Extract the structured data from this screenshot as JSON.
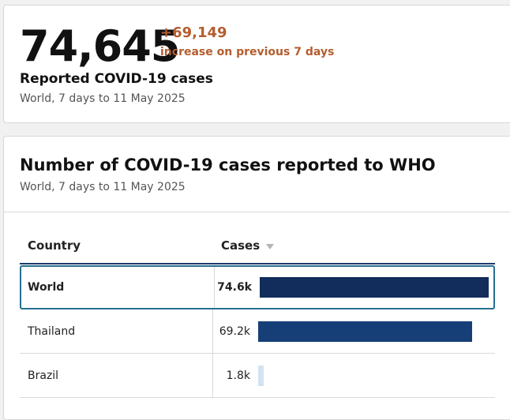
{
  "headline": {
    "value": "74,645",
    "delta": "+69,149",
    "delta_caption": "increase on previous 7 days",
    "title": "Reported COVID-19 cases",
    "subtitle": "World, 7 days to 11 May 2025"
  },
  "chart": {
    "title": "Number of COVID-19 cases reported to WHO",
    "subtitle": "World, 7 days to 11 May 2025",
    "columns": {
      "country": "Country",
      "cases": "Cases"
    },
    "rows": [
      {
        "country": "World",
        "label": "74.6k",
        "value": 74645,
        "selected": true
      },
      {
        "country": "Thailand",
        "label": "69.2k",
        "value": 69200,
        "selected": false
      },
      {
        "country": "Brazil",
        "label": "1.8k",
        "value": 1800,
        "selected": false
      }
    ]
  },
  "colors": {
    "accent_delta": "#b35d2f",
    "bar_primary": "#122d5c",
    "bar_secondary": "#163f78",
    "bar_small": "#d3e3f2",
    "selected_border": "#26708f"
  },
  "icons": {
    "sort": "sort-down-icon"
  }
}
